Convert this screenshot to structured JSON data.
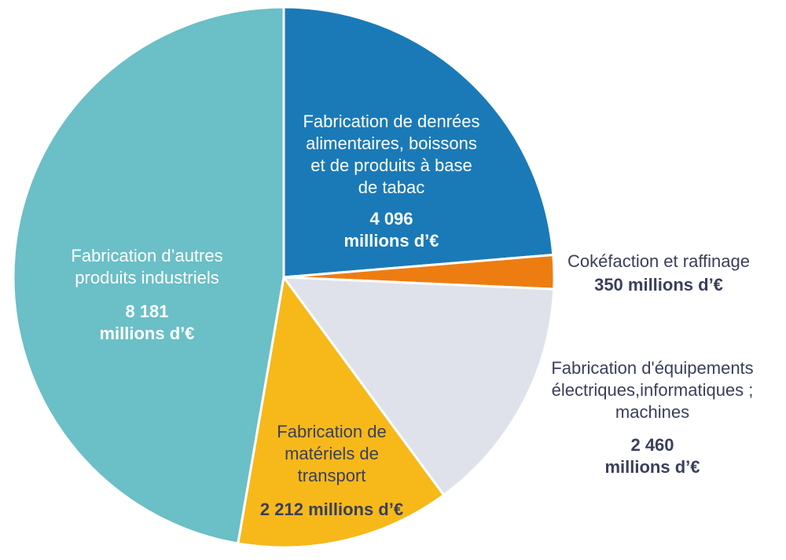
{
  "chart_data": {
    "type": "pie",
    "title": "",
    "unit": "millions d'€",
    "slices": [
      {
        "name": "Fabrication de denrées alimentaires, boissons et de produits à base de tabac",
        "name_lines": [
          "Fabrication de denrées",
          "alimentaires, boissons",
          "et de produits à base",
          "de tabac"
        ],
        "value": 4096,
        "value_lines": [
          "4 096",
          "millions d’€"
        ],
        "color": "#1a7ab7",
        "text_color": "#ffffff"
      },
      {
        "name": "Cokéfaction et raffinage",
        "name_lines": [
          "Cokéfaction et raffinage"
        ],
        "value": 350,
        "value_lines": [
          "350 millions d’€"
        ],
        "color": "#ee7d11",
        "text_color": "#3a3f5a"
      },
      {
        "name": "Fabrication d'équipements électriques,informatiques ; machines",
        "name_lines": [
          "Fabrication d'équipements",
          "électriques,informatiques ;",
          "machines"
        ],
        "value": 2460,
        "value_lines": [
          "2 460",
          "millions d’€"
        ],
        "color": "#dfe2ea",
        "text_color": "#3a3f5a"
      },
      {
        "name": "Fabrication de matériels de transport",
        "name_lines": [
          "Fabrication de",
          "matériels de",
          "transport"
        ],
        "value": 2212,
        "value_lines": [
          "2 212 millions d’€"
        ],
        "color": "#f7b81a",
        "text_color": "#3a3f5a"
      },
      {
        "name": "Fabrication d’autres produits industriels",
        "name_lines": [
          "Fabrication d’autres",
          "produits industriels"
        ],
        "value": 8181,
        "value_lines": [
          "8 181",
          "millions d’€"
        ],
        "color": "#6bbfc6",
        "text_color": "#ffffff"
      }
    ]
  }
}
